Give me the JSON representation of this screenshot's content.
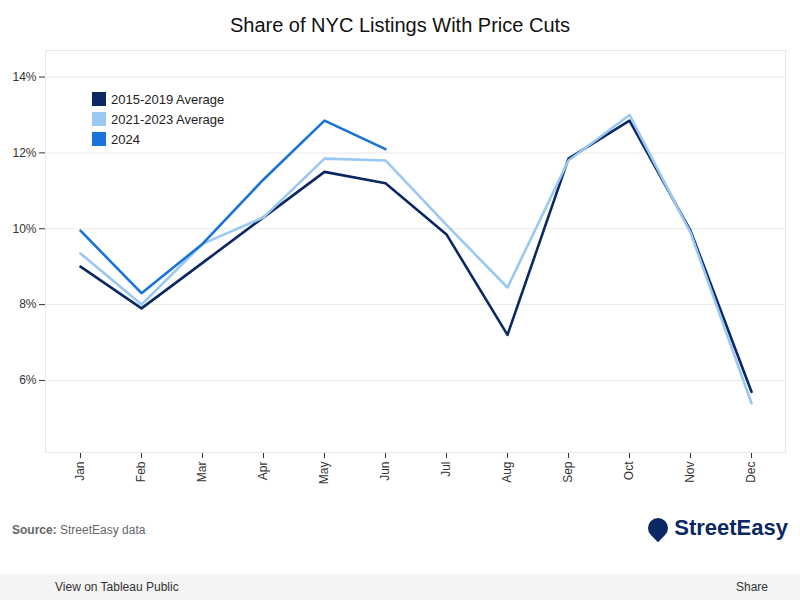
{
  "chart_data": {
    "type": "line",
    "title": "Share of NYC Listings With Price Cuts",
    "categories": [
      "Jan",
      "Feb",
      "Mar",
      "Apr",
      "May",
      "Jun",
      "Jul",
      "Aug",
      "Sep",
      "Oct",
      "Nov",
      "Dec"
    ],
    "series": [
      {
        "name": "2015-2019 Average",
        "color": "#0b2862",
        "values": [
          9.0,
          7.9,
          9.1,
          10.3,
          11.5,
          11.2,
          9.85,
          7.2,
          11.85,
          12.85,
          9.95,
          5.7
        ]
      },
      {
        "name": "2021-2023 Average",
        "color": "#9ac8f2",
        "values": [
          9.35,
          8.0,
          9.6,
          10.3,
          11.85,
          11.8,
          10.1,
          8.45,
          11.8,
          13.0,
          9.9,
          5.4
        ]
      },
      {
        "name": "2024",
        "color": "#1a73d9",
        "values": [
          9.95,
          8.3,
          9.6,
          11.3,
          12.85,
          12.1,
          null,
          null,
          null,
          null,
          null,
          null
        ]
      }
    ],
    "ylim": [
      4.1,
      14.7
    ],
    "yticks": [
      {
        "value": 6,
        "label": "6%"
      },
      {
        "value": 8,
        "label": "8%"
      },
      {
        "value": 10,
        "label": "10%"
      },
      {
        "value": 12,
        "label": "12%"
      },
      {
        "value": 14,
        "label": "14%"
      }
    ],
    "grid": true,
    "legend": "top-left",
    "source_label": "Source:",
    "source": "StreetEasy data",
    "logo": "StreetEasy",
    "toolbar_texts": [
      "View on Tableau Public",
      "Share"
    ]
  }
}
